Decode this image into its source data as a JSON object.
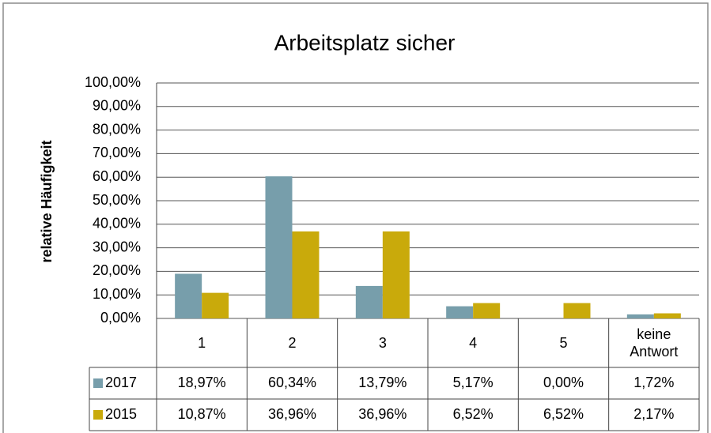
{
  "chart_data": {
    "type": "bar",
    "title": "Arbeitsplatz sicher",
    "y_label": "relative Häufigkeit",
    "categories": [
      "1",
      "2",
      "3",
      "4",
      "5",
      "keine Antwort"
    ],
    "series": [
      {
        "name": "2017",
        "color": "#779eab",
        "values": [
          18.97,
          60.34,
          13.79,
          5.17,
          0.0,
          1.72
        ],
        "value_labels": [
          "18,97%",
          "60,34%",
          "13,79%",
          "5,17%",
          "0,00%",
          "1,72%"
        ]
      },
      {
        "name": "2015",
        "color": "#c9aa0b",
        "values": [
          10.87,
          36.96,
          36.96,
          6.52,
          6.52,
          2.17
        ],
        "value_labels": [
          "10,87%",
          "36,96%",
          "36,96%",
          "6,52%",
          "6,52%",
          "2,17%"
        ]
      }
    ],
    "ylim": [
      0,
      100
    ],
    "yticks": [
      {
        "value": 0,
        "label": "0,00%"
      },
      {
        "value": 10,
        "label": "10,00%"
      },
      {
        "value": 20,
        "label": "20,00%"
      },
      {
        "value": 30,
        "label": "30,00%"
      },
      {
        "value": 40,
        "label": "40,00%"
      },
      {
        "value": 50,
        "label": "50,00%"
      },
      {
        "value": 60,
        "label": "60,00%"
      },
      {
        "value": 70,
        "label": "70,00%"
      },
      {
        "value": 80,
        "label": "80,00%"
      },
      {
        "value": 90,
        "label": "90,00%"
      },
      {
        "value": 100,
        "label": "100,00%"
      }
    ],
    "grid": true
  }
}
